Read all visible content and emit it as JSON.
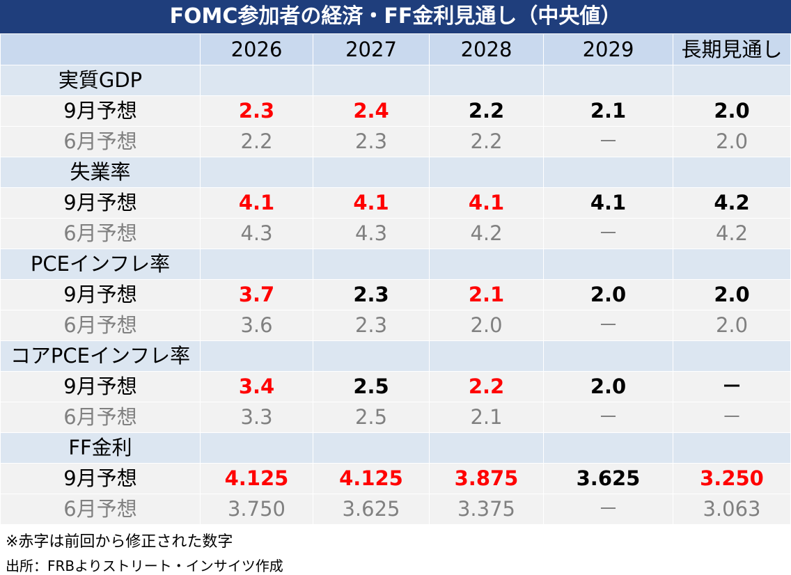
{
  "header": {
    "title": "FOMC参加者の経済・FF金利見通し（中央値）",
    "columns": [
      "2026",
      "2027",
      "2028",
      "2029",
      "長期見通し"
    ]
  },
  "sections": [
    {
      "name": "実質GDP",
      "rows": [
        {
          "label": "9月予想",
          "values": [
            "2.3",
            "2.4",
            "2.2",
            "2.1",
            "2.0"
          ],
          "colors": [
            "#ff0000",
            "#ff0000",
            "#000000",
            "#000000",
            "#000000"
          ]
        },
        {
          "label": "6月予想",
          "values": [
            "2.2",
            "2.3",
            "2.2",
            "－",
            "2.0"
          ],
          "colors": [
            "#808080",
            "#808080",
            "#808080",
            "#808080",
            "#808080"
          ]
        }
      ]
    },
    {
      "name": "失業率",
      "rows": [
        {
          "label": "9月予想",
          "values": [
            "4.1",
            "4.1",
            "4.1",
            "4.1",
            "4.2"
          ],
          "colors": [
            "#ff0000",
            "#ff0000",
            "#ff0000",
            "#000000",
            "#000000"
          ]
        },
        {
          "label": "6月予想",
          "values": [
            "4.3",
            "4.3",
            "4.2",
            "－",
            "4.2"
          ],
          "colors": [
            "#808080",
            "#808080",
            "#808080",
            "#808080",
            "#808080"
          ]
        }
      ]
    },
    {
      "name": "PCEインフレ率",
      "rows": [
        {
          "label": "9月予想",
          "values": [
            "3.7",
            "2.3",
            "2.1",
            "2.0",
            "2.0"
          ],
          "colors": [
            "#ff0000",
            "#000000",
            "#ff0000",
            "#000000",
            "#000000"
          ]
        },
        {
          "label": "6月予想",
          "values": [
            "3.6",
            "2.3",
            "2.0",
            "－",
            "2.0"
          ],
          "colors": [
            "#808080",
            "#808080",
            "#808080",
            "#808080",
            "#808080"
          ]
        }
      ]
    },
    {
      "name": "コアPCEインフレ率",
      "rows": [
        {
          "label": "9月予想",
          "values": [
            "3.4",
            "2.5",
            "2.2",
            "2.0",
            "－"
          ],
          "colors": [
            "#ff0000",
            "#000000",
            "#ff0000",
            "#000000",
            "#000000"
          ]
        },
        {
          "label": "6月予想",
          "values": [
            "3.3",
            "2.5",
            "2.1",
            "－",
            "－"
          ],
          "colors": [
            "#808080",
            "#808080",
            "#808080",
            "#808080",
            "#808080"
          ]
        }
      ]
    },
    {
      "name": "FF金利",
      "rows": [
        {
          "label": "9月予想",
          "values": [
            "4.125",
            "4.125",
            "3.875",
            "3.625",
            "3.250"
          ],
          "colors": [
            "#ff0000",
            "#ff0000",
            "#ff0000",
            "#000000",
            "#ff0000"
          ]
        },
        {
          "label": "6月予想",
          "values": [
            "3.750",
            "3.625",
            "3.375",
            "－",
            "3.063"
          ],
          "colors": [
            "#808080",
            "#808080",
            "#808080",
            "#808080",
            "#808080"
          ]
        }
      ]
    }
  ],
  "notes": [
    "※赤字は前回から修正された数字",
    "出所：FRBよりストリート・インサイツ作成"
  ]
}
